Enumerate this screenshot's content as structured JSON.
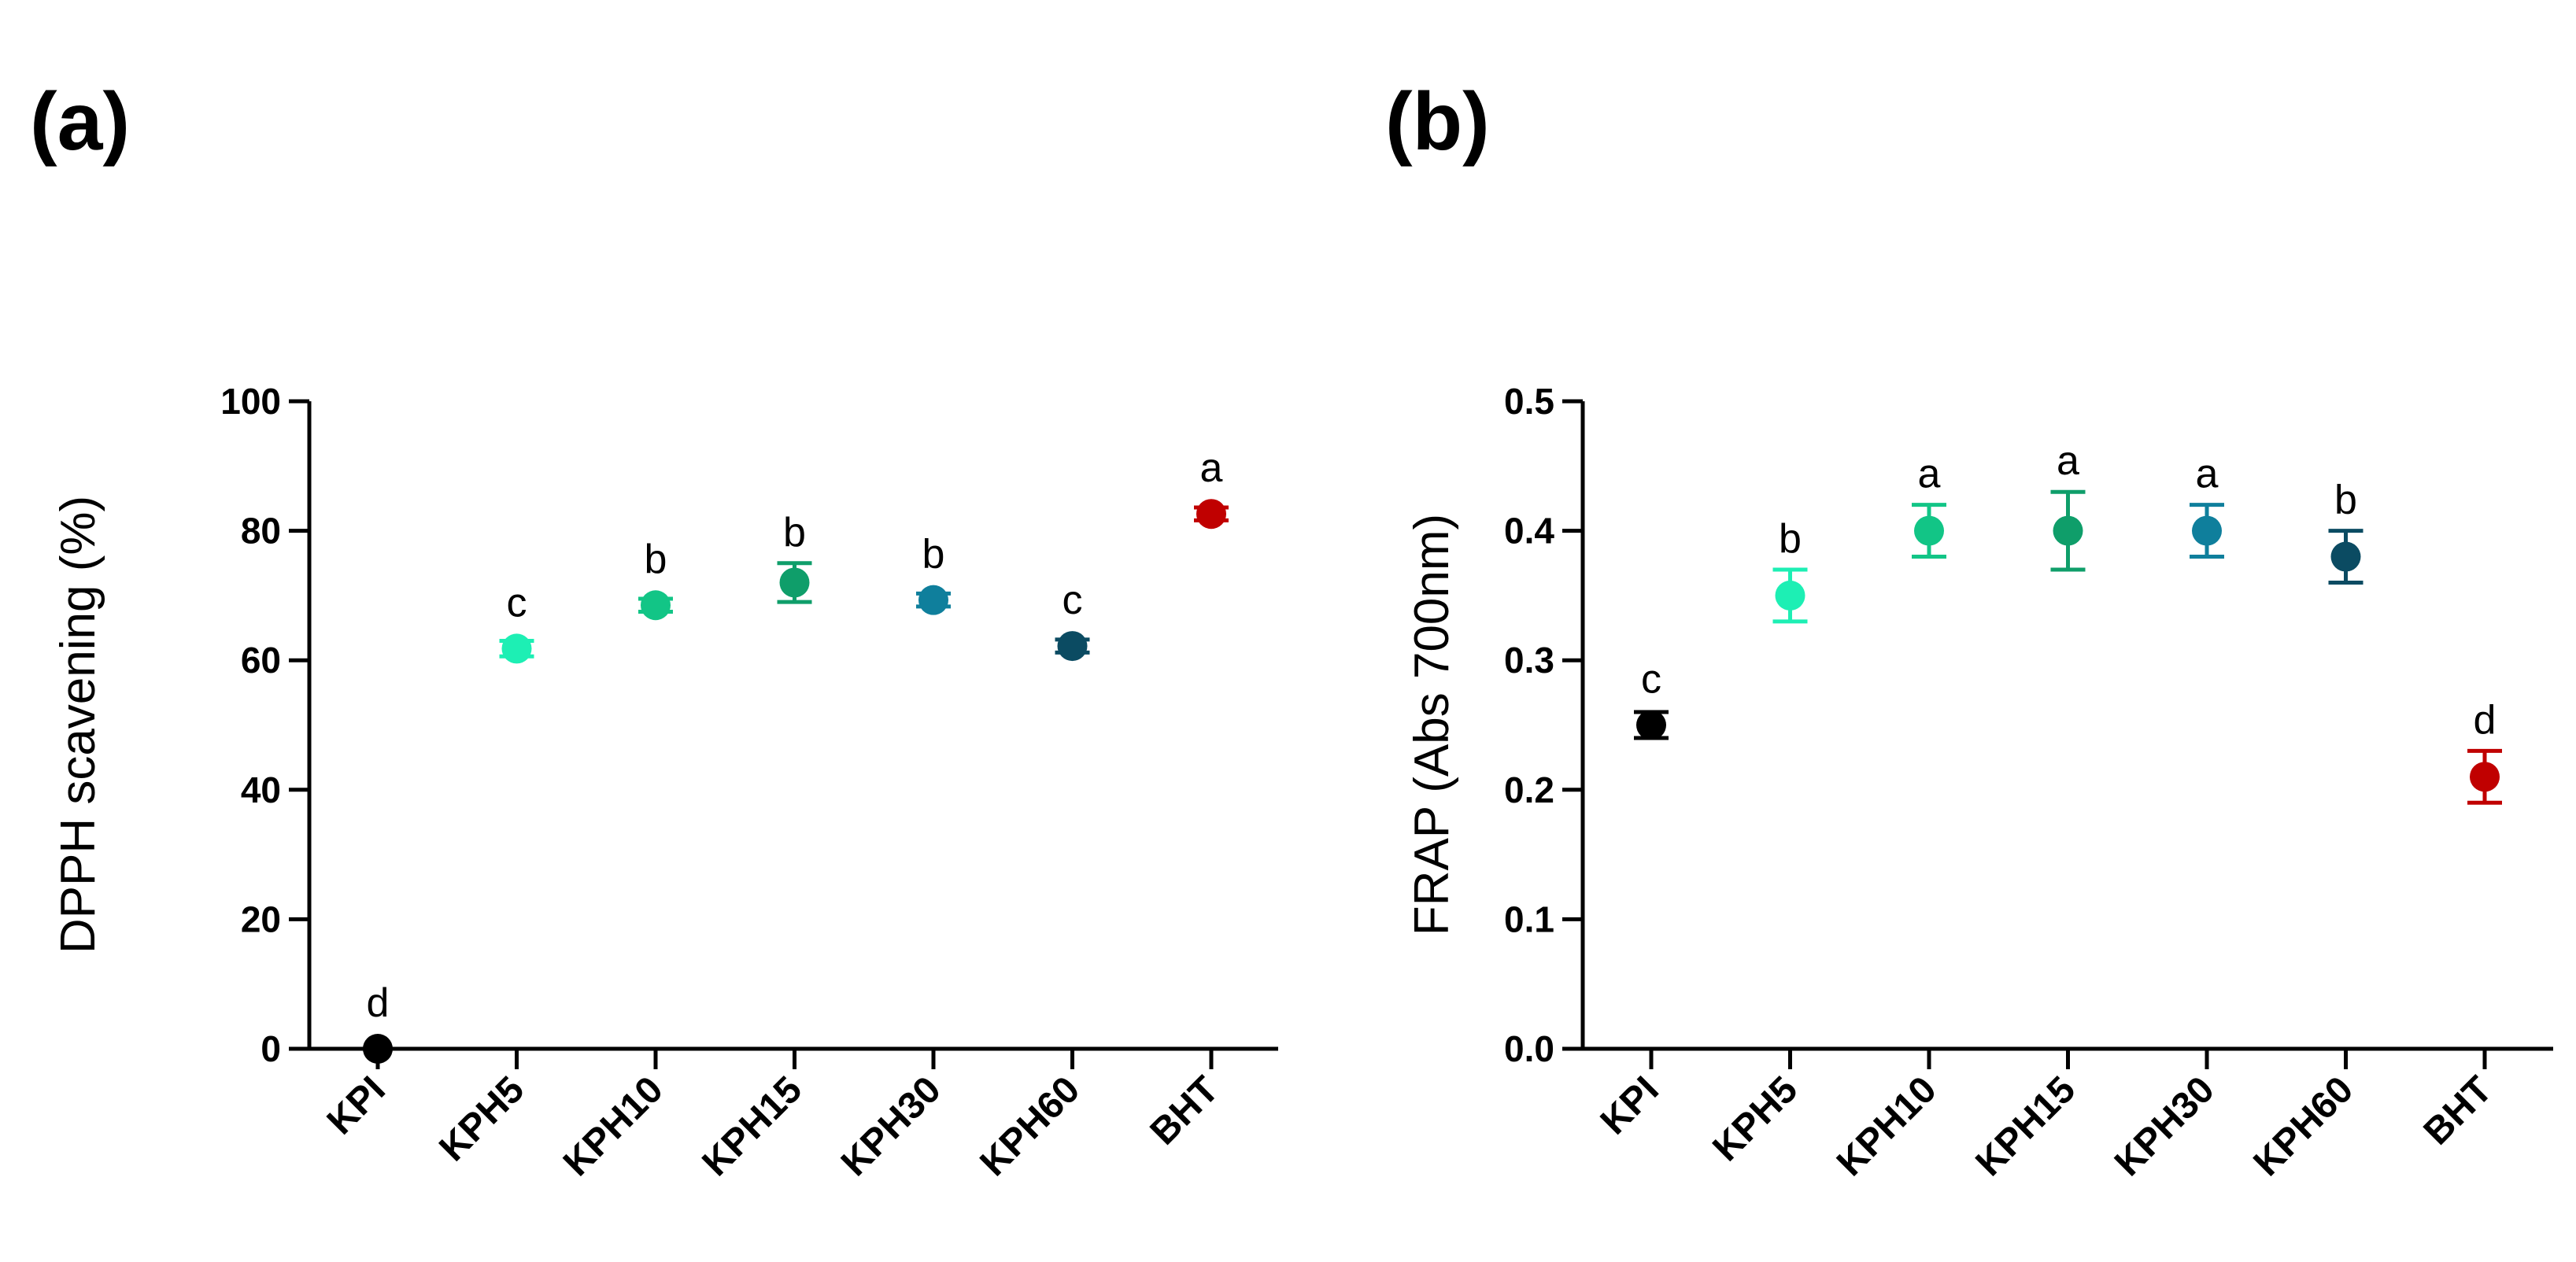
{
  "chart_data": [
    {
      "type": "scatter",
      "panel_label": "(a)",
      "ylabel": "DPPH scavening (%)",
      "xlabel": "",
      "ylim": [
        0,
        100
      ],
      "yticks": [
        "0",
        "20",
        "40",
        "60",
        "80",
        "100"
      ],
      "ytick_values": [
        0,
        20,
        40,
        60,
        80,
        100
      ],
      "categories": [
        "KPI",
        "KPH5",
        "KPH10",
        "KPH15",
        "KPH30",
        "KPH60",
        "BHT"
      ],
      "values": [
        0,
        61.8,
        68.5,
        72,
        69.3,
        62.2,
        82.6
      ],
      "errors": [
        0,
        1.2,
        1,
        3,
        1,
        1,
        1
      ],
      "significance": [
        "d",
        "c",
        "b",
        "b",
        "b",
        "c",
        "a"
      ],
      "colors": [
        "#000000",
        "#1DEFB4",
        "#12C586",
        "#0F9E6A",
        "#0F7F9C",
        "#0B4B62",
        "#C00000"
      ]
    },
    {
      "type": "scatter",
      "panel_label": "(b)",
      "ylabel": "FRAP (Abs 700nm)",
      "xlabel": "",
      "ylim": [
        0,
        0.5
      ],
      "yticks": [
        "0.0",
        "0.1",
        "0.2",
        "0.3",
        "0.4",
        "0.5"
      ],
      "ytick_values": [
        0,
        0.1,
        0.2,
        0.3,
        0.4,
        0.5
      ],
      "categories": [
        "KPI",
        "KPH5",
        "KPH10",
        "KPH15",
        "KPH30",
        "KPH60",
        "BHT"
      ],
      "values": [
        0.25,
        0.35,
        0.4,
        0.4,
        0.4,
        0.38,
        0.21
      ],
      "errors": [
        0.01,
        0.02,
        0.02,
        0.03,
        0.02,
        0.02,
        0.02
      ],
      "significance": [
        "c",
        "b",
        "a",
        "a",
        "a",
        "b",
        "d"
      ],
      "colors": [
        "#000000",
        "#1DEFB4",
        "#12C586",
        "#0F9E6A",
        "#0F7F9C",
        "#0B4B62",
        "#C00000"
      ]
    }
  ]
}
